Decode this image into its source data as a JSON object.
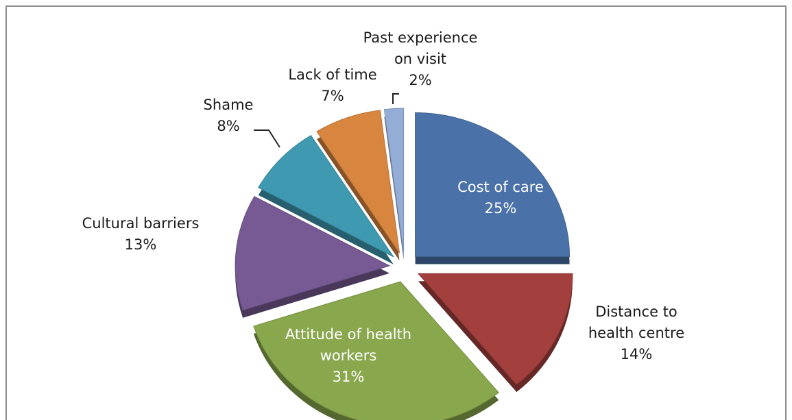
{
  "chart_data": {
    "type": "pie",
    "categories": [
      "Cost of care",
      "Distance to health centre",
      "Attitude of health workers",
      "Cultural barriers",
      "Shame",
      "Lack of time",
      "Past experience on visit"
    ],
    "values": [
      25,
      14,
      31,
      13,
      8,
      7,
      2
    ],
    "value_labels": [
      "25%",
      "14%",
      "31%",
      "13%",
      "8%",
      "7%",
      "2%"
    ],
    "colors": [
      "#4a72a8",
      "#a3403d",
      "#89a74d",
      "#775a93",
      "#3f9ab1",
      "#d8853f",
      "#93add6"
    ]
  }
}
